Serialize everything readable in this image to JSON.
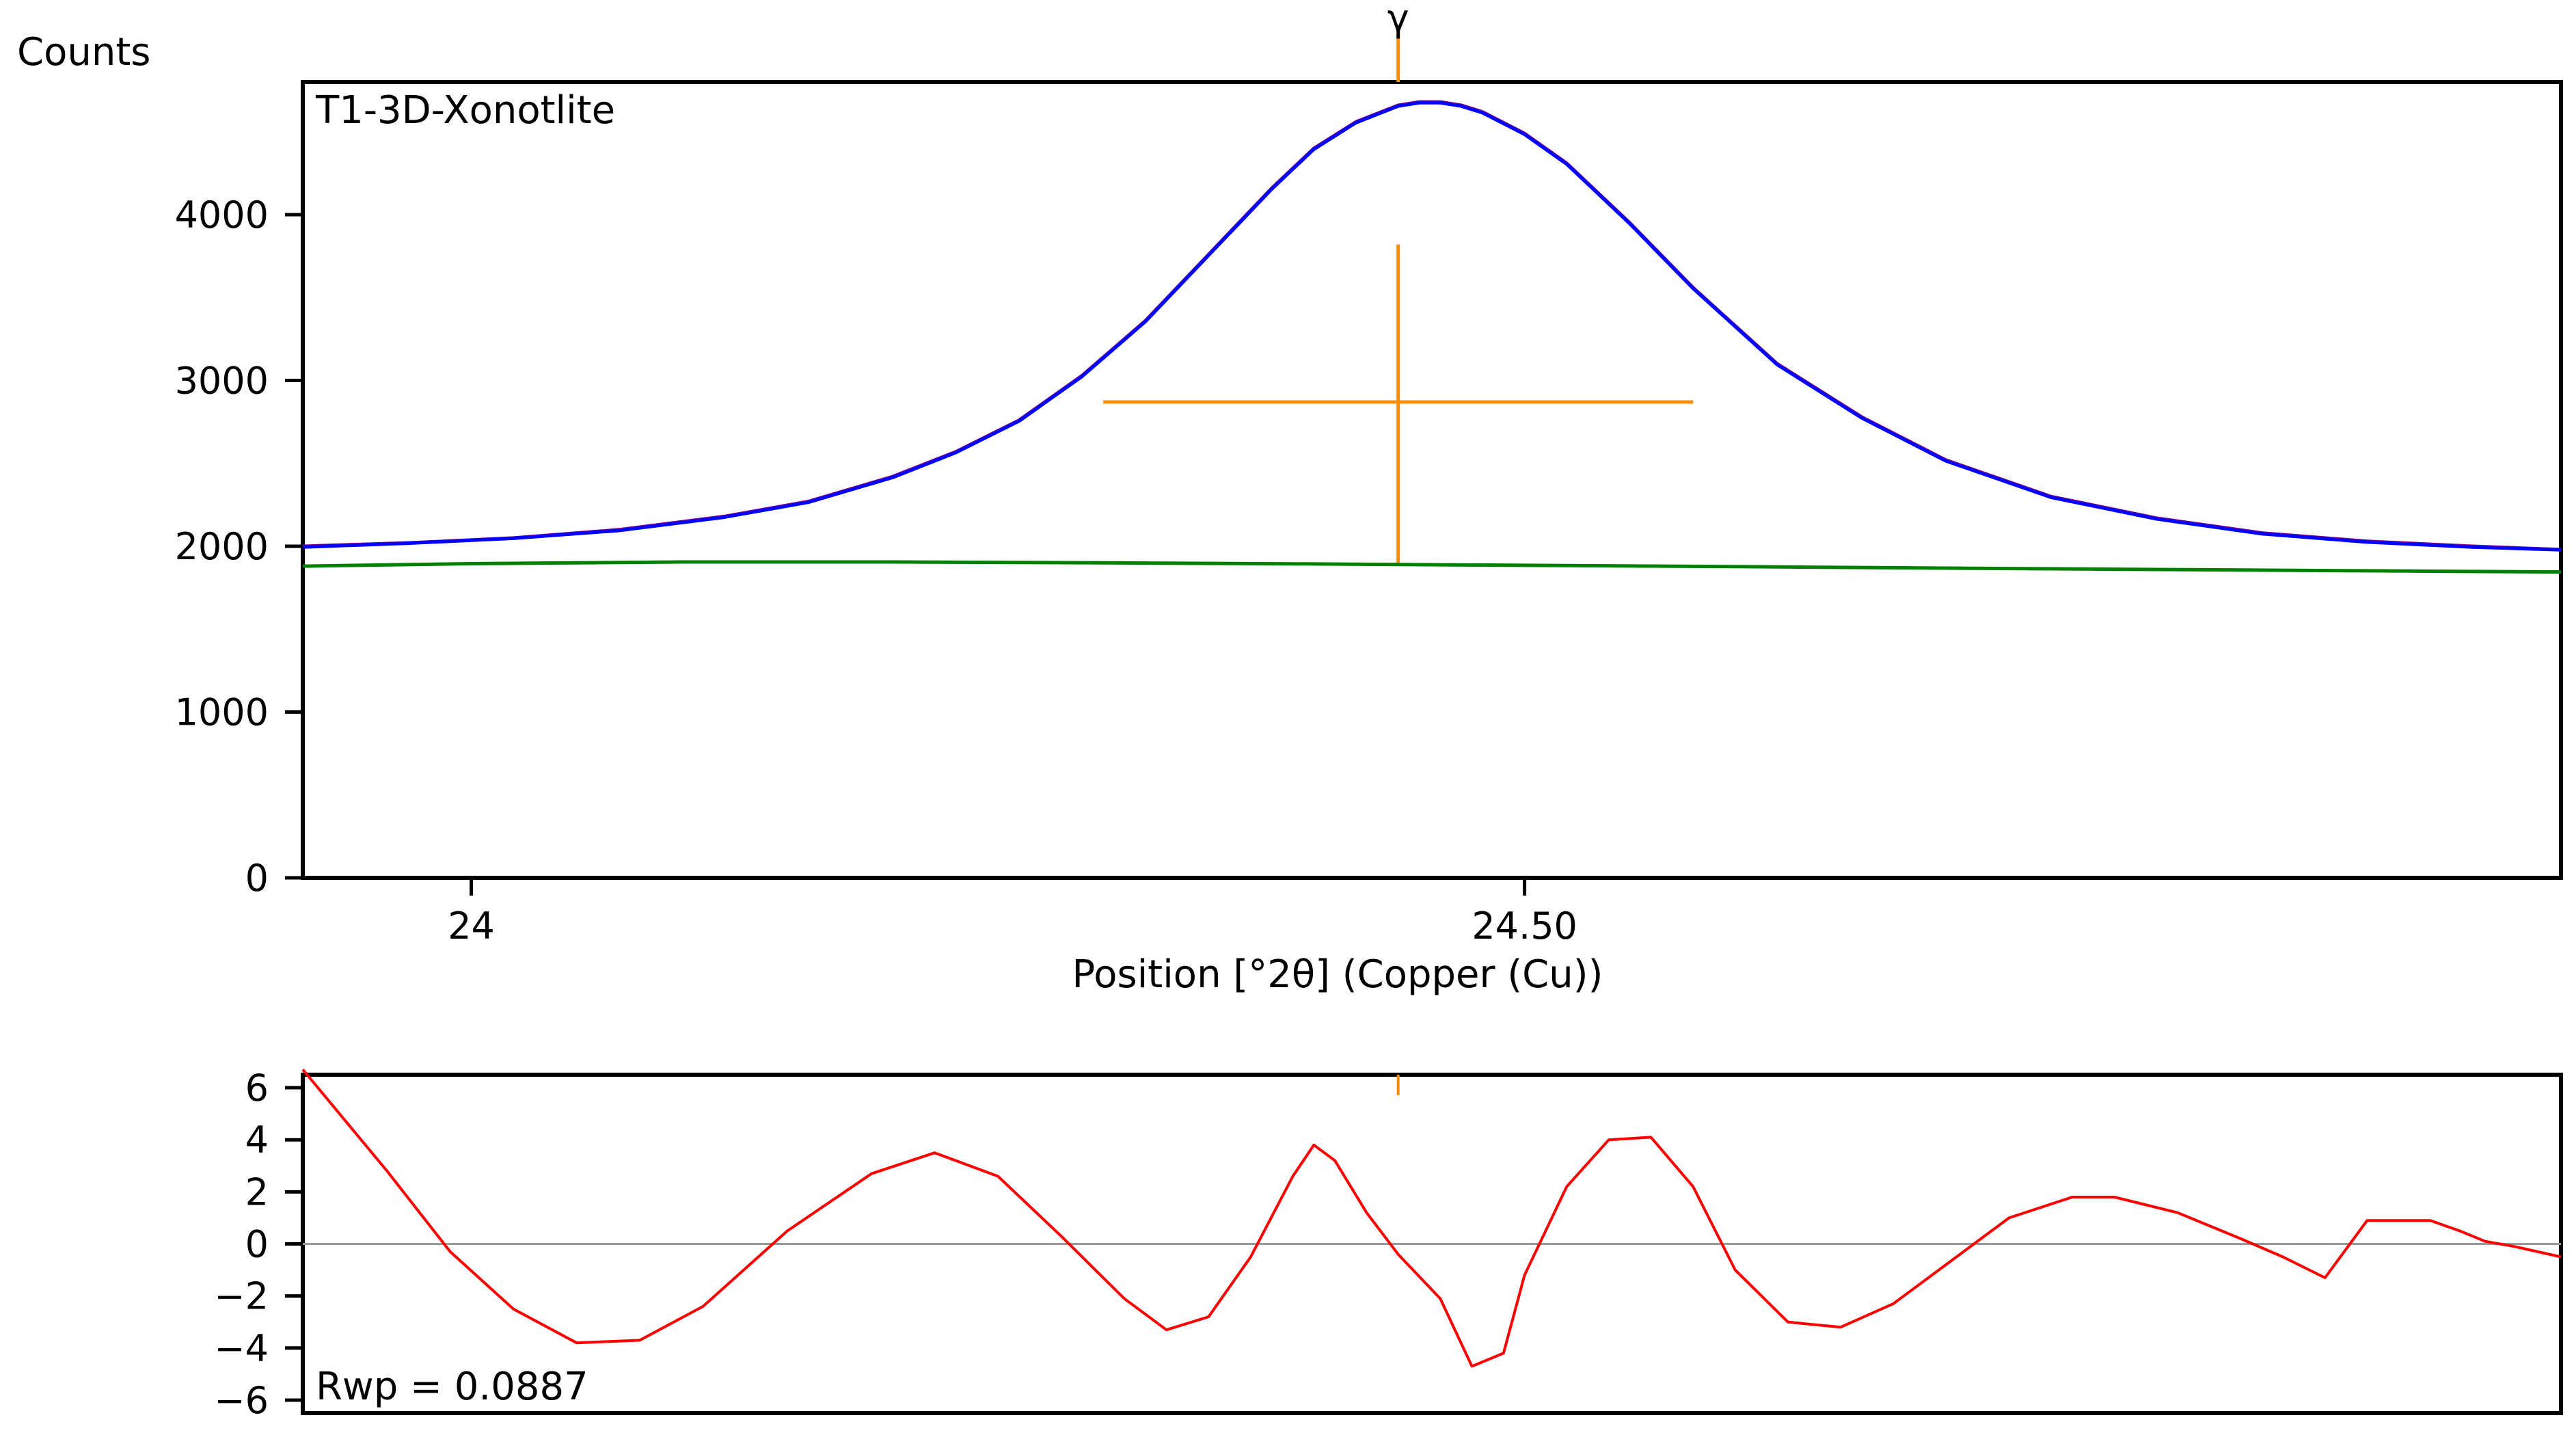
{
  "chart_data": [
    {
      "type": "line",
      "title": "T1-3D-Xonotlite",
      "xlabel": "Position [°2θ] (Copper (Cu))",
      "ylabel": "Counts",
      "xlim": [
        23.92,
        24.992
      ],
      "ylim": [
        0,
        4800
      ],
      "x_ticks": [
        {
          "value": 24,
          "label": "24"
        },
        {
          "value": 24.5,
          "label": "24.50"
        }
      ],
      "y_ticks": [
        {
          "value": 0,
          "label": "0"
        },
        {
          "value": 1000,
          "label": "1000"
        },
        {
          "value": 2000,
          "label": "2000"
        },
        {
          "value": 3000,
          "label": "3000"
        },
        {
          "value": 4000,
          "label": "4000"
        }
      ],
      "reflection_marker": {
        "label": "γ",
        "position": 24.44,
        "color": "#ff8c00"
      },
      "peak_cross": {
        "center_x": 24.44,
        "center_y": 2870,
        "x_range": [
          24.3,
          24.58
        ],
        "y_range": [
          1890,
          3820
        ],
        "color": "#ff8c00"
      },
      "series": [
        {
          "color": "#800080",
          "x": [
            23.92,
            23.97,
            24.02,
            24.07,
            24.12,
            24.16,
            24.2,
            24.23,
            24.26,
            24.29,
            24.32,
            24.35,
            24.38,
            24.4,
            24.42,
            24.44,
            24.45,
            24.46,
            24.47,
            24.48,
            24.5,
            24.52,
            24.55,
            24.58,
            24.62,
            24.66,
            24.7,
            24.75,
            24.8,
            24.85,
            24.9,
            24.95,
            24.992
          ],
          "y": [
            2000,
            2020,
            2050,
            2100,
            2180,
            2270,
            2420,
            2570,
            2760,
            3030,
            3360,
            3760,
            4160,
            4400,
            4560,
            4660,
            4680,
            4680,
            4660,
            4620,
            4490,
            4310,
            3950,
            3560,
            3100,
            2780,
            2520,
            2300,
            2170,
            2080,
            2030,
            2000,
            1980
          ]
        },
        {
          "color": "#0000ff",
          "x": [
            23.92,
            23.97,
            24.02,
            24.07,
            24.12,
            24.16,
            24.2,
            24.23,
            24.26,
            24.29,
            24.32,
            24.35,
            24.38,
            24.4,
            24.42,
            24.44,
            24.45,
            24.46,
            24.47,
            24.48,
            24.5,
            24.52,
            24.55,
            24.58,
            24.62,
            24.66,
            24.7,
            24.75,
            24.8,
            24.85,
            24.9,
            24.95,
            24.992
          ],
          "y": [
            1995,
            2018,
            2048,
            2095,
            2175,
            2265,
            2415,
            2565,
            2755,
            3025,
            3355,
            3755,
            4155,
            4395,
            4555,
            4655,
            4675,
            4675,
            4655,
            4615,
            4485,
            4305,
            3945,
            3555,
            3095,
            2775,
            2515,
            2295,
            2165,
            2075,
            2025,
            1995,
            1978
          ]
        },
        {
          "color": "#008000",
          "x": [
            23.92,
            24.0,
            24.1,
            24.2,
            24.3,
            24.4,
            24.5,
            24.6,
            24.7,
            24.8,
            24.9,
            24.992
          ],
          "y": [
            1880,
            1895,
            1905,
            1905,
            1900,
            1893,
            1885,
            1877,
            1868,
            1860,
            1852,
            1845
          ]
        }
      ]
    },
    {
      "type": "line",
      "title": "",
      "annotation": "Rwp = 0.0887",
      "xlim": [
        23.92,
        24.992
      ],
      "ylim": [
        -6.5,
        6.5
      ],
      "y_ticks": [
        {
          "value": 6,
          "label": "6"
        },
        {
          "value": 4,
          "label": "4"
        },
        {
          "value": 2,
          "label": "2"
        },
        {
          "value": 0,
          "label": "0"
        },
        {
          "value": -2,
          "label": "−2"
        },
        {
          "value": -4,
          "label": "−4"
        },
        {
          "value": -6,
          "label": "−6"
        }
      ],
      "zero_line": true,
      "reflection_marker": {
        "position": 24.44,
        "color": "#ff8c00"
      },
      "series": [
        {
          "color": "#ff0000",
          "x": [
            23.92,
            23.96,
            23.99,
            24.02,
            24.05,
            24.08,
            24.11,
            24.15,
            24.19,
            24.22,
            24.25,
            24.28,
            24.31,
            24.33,
            24.35,
            24.37,
            24.39,
            24.4,
            24.41,
            24.425,
            24.44,
            24.46,
            24.475,
            24.49,
            24.5,
            24.52,
            24.54,
            24.56,
            24.58,
            24.6,
            24.625,
            24.65,
            24.675,
            24.7,
            24.73,
            24.76,
            24.78,
            24.81,
            24.84,
            24.86,
            24.88,
            24.9,
            24.93,
            24.944,
            24.956,
            24.97,
            24.992
          ],
          "y": [
            6.7,
            2.8,
            -0.3,
            -2.5,
            -3.8,
            -3.7,
            -2.4,
            0.5,
            2.7,
            3.5,
            2.6,
            0.3,
            -2.1,
            -3.3,
            -2.8,
            -0.5,
            2.6,
            3.8,
            3.2,
            1.2,
            -0.4,
            -2.1,
            -4.7,
            -4.2,
            -1.2,
            2.2,
            4.0,
            4.1,
            2.2,
            -1.0,
            -3.0,
            -3.2,
            -2.3,
            -0.8,
            1.0,
            1.8,
            1.8,
            1.2,
            0.2,
            -0.5,
            -1.3,
            0.9,
            0.9,
            0.5,
            0.1,
            -0.1,
            -0.5
          ]
        }
      ]
    }
  ]
}
